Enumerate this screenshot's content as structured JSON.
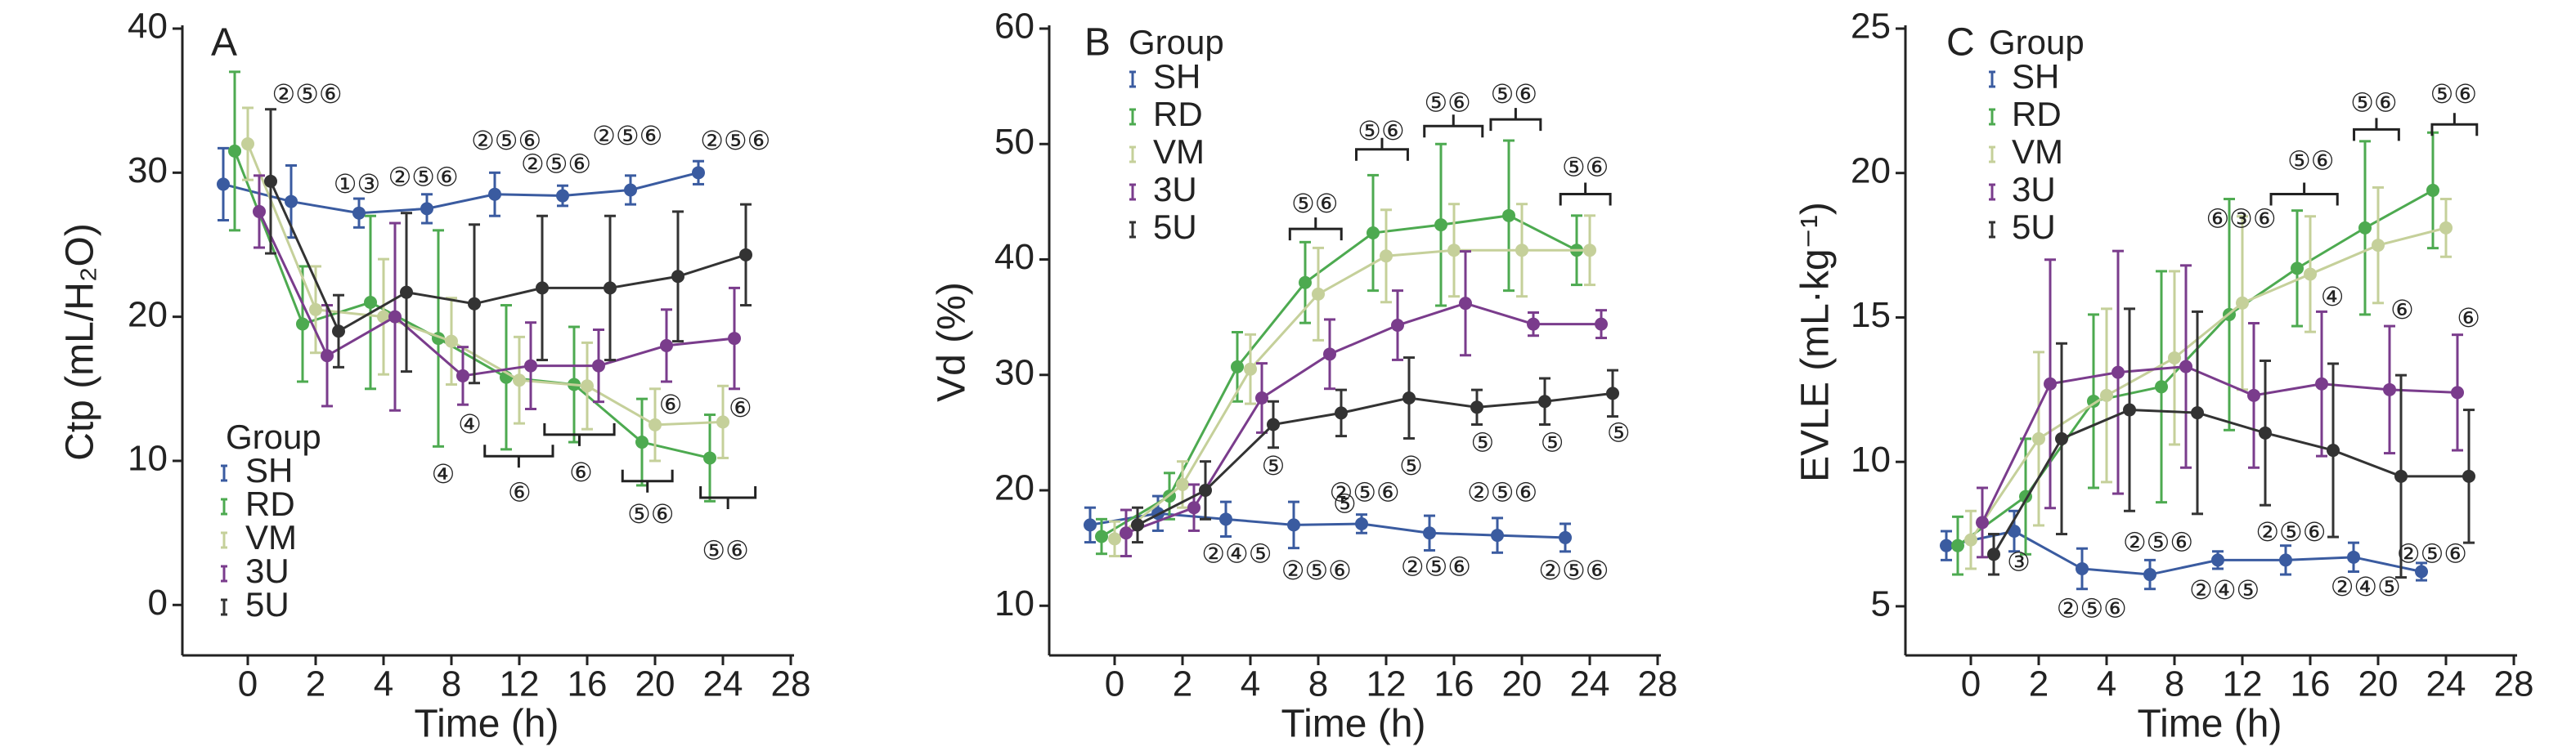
{
  "chart_data": [
    {
      "type": "line",
      "panel": "A",
      "ylabel": "Ctp (mL/H₂O)",
      "xlabel": "Time (h)",
      "legend_title": "Group",
      "categories": [
        "0",
        "2",
        "4",
        "8",
        "12",
        "16",
        "20",
        "24",
        "28"
      ],
      "ylim": [
        -3.5,
        40
      ],
      "yticks": [
        0,
        10,
        20,
        30,
        40
      ],
      "series": [
        {
          "name": "SH",
          "color": "#3a5ba0",
          "values": [
            29.2,
            28,
            27.2,
            27.5,
            28.5,
            28.4,
            28.8,
            30.0,
            null
          ],
          "errors": [
            2.5,
            2.5,
            1,
            1,
            1.5,
            0.7,
            1,
            0.8,
            null
          ]
        },
        {
          "name": "RD",
          "color": "#4daa50",
          "values": [
            31.5,
            19.5,
            21,
            18.5,
            15.8,
            15.3,
            11.3,
            10.2,
            null
          ],
          "errors": [
            5.5,
            4,
            6,
            7.5,
            5,
            4,
            3,
            3,
            null
          ]
        },
        {
          "name": "VM",
          "color": "#c5d09a",
          "values": [
            32,
            20.5,
            20,
            18.3,
            15.6,
            15.2,
            12.5,
            12.7,
            null
          ],
          "errors": [
            2.5,
            3,
            4,
            3,
            3,
            3,
            2.5,
            2.5,
            null
          ]
        },
        {
          "name": "3U",
          "color": "#7a3c8c",
          "values": [
            27.3,
            17.3,
            20,
            15.9,
            16.6,
            16.6,
            18,
            18.5,
            null
          ],
          "errors": [
            2.5,
            3.5,
            6.5,
            2,
            3,
            2.5,
            2.5,
            3.5,
            null
          ]
        },
        {
          "name": "5U",
          "color": "#333333",
          "values": [
            29.4,
            19,
            21.7,
            20.9,
            22,
            22,
            22.8,
            24.3,
            null
          ],
          "errors": [
            5,
            2.5,
            5.5,
            5.5,
            5,
            5,
            4.5,
            3.5,
            null
          ]
        }
      ],
      "annotations": [
        "②⑤⑥",
        "①③",
        "②⑤⑥",
        "②⑤⑥",
        "②⑤⑥",
        "②⑤⑥",
        "②⑤⑥",
        "④",
        "④",
        "⑥",
        "⑥",
        "⑥",
        "⑤⑥",
        "⑥",
        "⑤⑥"
      ]
    },
    {
      "type": "line",
      "panel": "B",
      "ylabel": "Vd (%)",
      "xlabel": "Time (h)",
      "legend_title": "Group",
      "categories": [
        "0",
        "2",
        "4",
        "8",
        "12",
        "16",
        "20",
        "24",
        "28"
      ],
      "ylim": [
        5.7,
        60
      ],
      "yticks": [
        10,
        20,
        30,
        40,
        50,
        60
      ],
      "series": [
        {
          "name": "SH",
          "color": "#3a5ba0",
          "values": [
            17,
            18,
            17.5,
            17,
            17.1,
            16.3,
            16.1,
            15.9,
            null
          ],
          "errors": [
            1.5,
            1.5,
            1.5,
            2,
            0.8,
            1.5,
            1.5,
            1.2,
            null
          ]
        },
        {
          "name": "RD",
          "color": "#4daa50",
          "values": [
            16,
            19.5,
            30.7,
            38,
            42.3,
            43,
            43.8,
            40.8,
            null
          ],
          "errors": [
            1.5,
            2,
            3,
            3.5,
            5,
            7,
            6.5,
            3,
            null
          ]
        },
        {
          "name": "VM",
          "color": "#c5d09a",
          "values": [
            15.8,
            20.5,
            30.5,
            37,
            40.3,
            40.8,
            40.8,
            40.8,
            null
          ],
          "errors": [
            1.5,
            2,
            3,
            4,
            4,
            4,
            4,
            3,
            null
          ]
        },
        {
          "name": "3U",
          "color": "#7a3c8c",
          "values": [
            16.3,
            18.5,
            28,
            31.8,
            34.3,
            36.2,
            34.4,
            34.4,
            null
          ],
          "errors": [
            2,
            2,
            3,
            3,
            3,
            4.5,
            1,
            1.2,
            null
          ]
        },
        {
          "name": "5U",
          "color": "#333333",
          "values": [
            17,
            20,
            25.7,
            26.7,
            28,
            27.2,
            27.7,
            28.4,
            null
          ],
          "errors": [
            1.5,
            2.5,
            2,
            2,
            3.5,
            1.5,
            2,
            2,
            null
          ]
        }
      ],
      "annotations": [
        "⑤⑥",
        "⑤⑥",
        "⑤⑥",
        "⑤⑥",
        "⑤⑥",
        "⑤",
        "⑤",
        "⑤",
        "⑤",
        "⑤",
        "⑤",
        "②⑤⑥",
        "②⑤⑥",
        "②④⑤",
        "②⑤⑥",
        "②⑤⑥",
        "②⑤⑥"
      ]
    },
    {
      "type": "line",
      "panel": "C",
      "ylabel": "EVLE (mL·kg⁻¹)",
      "xlabel": "Time (h)",
      "legend_title": "Group",
      "categories": [
        "0",
        "2",
        "4",
        "8",
        "12",
        "16",
        "20",
        "24",
        "28"
      ],
      "ylim": [
        3.3,
        25
      ],
      "yticks": [
        5,
        10,
        15,
        20,
        25
      ],
      "series": [
        {
          "name": "SH",
          "color": "#3a5ba0",
          "values": [
            7.1,
            7.6,
            6.3,
            6.1,
            6.6,
            6.6,
            6.7,
            6.2,
            null
          ],
          "errors": [
            0.5,
            0.7,
            0.7,
            0.5,
            0.3,
            0.5,
            0.5,
            0.3,
            null
          ]
        },
        {
          "name": "RD",
          "color": "#4daa50",
          "values": [
            7.1,
            8.8,
            12.1,
            12.6,
            15.1,
            16.7,
            18.1,
            19.4,
            null
          ],
          "errors": [
            1,
            2,
            3,
            4,
            4,
            2,
            3,
            2,
            null
          ]
        },
        {
          "name": "VM",
          "color": "#c5d09a",
          "values": [
            7.3,
            10.8,
            12.3,
            13.6,
            15.5,
            16.5,
            17.5,
            18.1,
            null
          ],
          "errors": [
            1,
            3,
            3,
            3,
            3,
            2,
            2,
            1,
            null
          ]
        },
        {
          "name": "3U",
          "color": "#7a3c8c",
          "values": [
            7.9,
            12.7,
            13.1,
            13.3,
            12.3,
            12.7,
            12.5,
            12.4,
            null
          ],
          "errors": [
            1.2,
            4.3,
            4.2,
            3.5,
            2.5,
            2.5,
            2.2,
            2,
            null
          ]
        },
        {
          "name": "5U",
          "color": "#333333",
          "values": [
            6.8,
            10.8,
            11.8,
            11.7,
            11,
            10.4,
            9.5,
            9.5,
            null
          ],
          "errors": [
            0.7,
            3.3,
            3.5,
            3.5,
            2.5,
            3,
            3.5,
            2.3,
            null
          ]
        }
      ],
      "annotations": [
        "⑤⑥",
        "⑤⑥",
        "⑤⑥",
        "⑥③⑥",
        "④",
        "⑥",
        "⑥",
        "③",
        "②⑤⑥",
        "②⑤⑥",
        "②⑤⑥",
        "②④⑤",
        "②④⑤",
        "②⑤⑥"
      ]
    }
  ]
}
